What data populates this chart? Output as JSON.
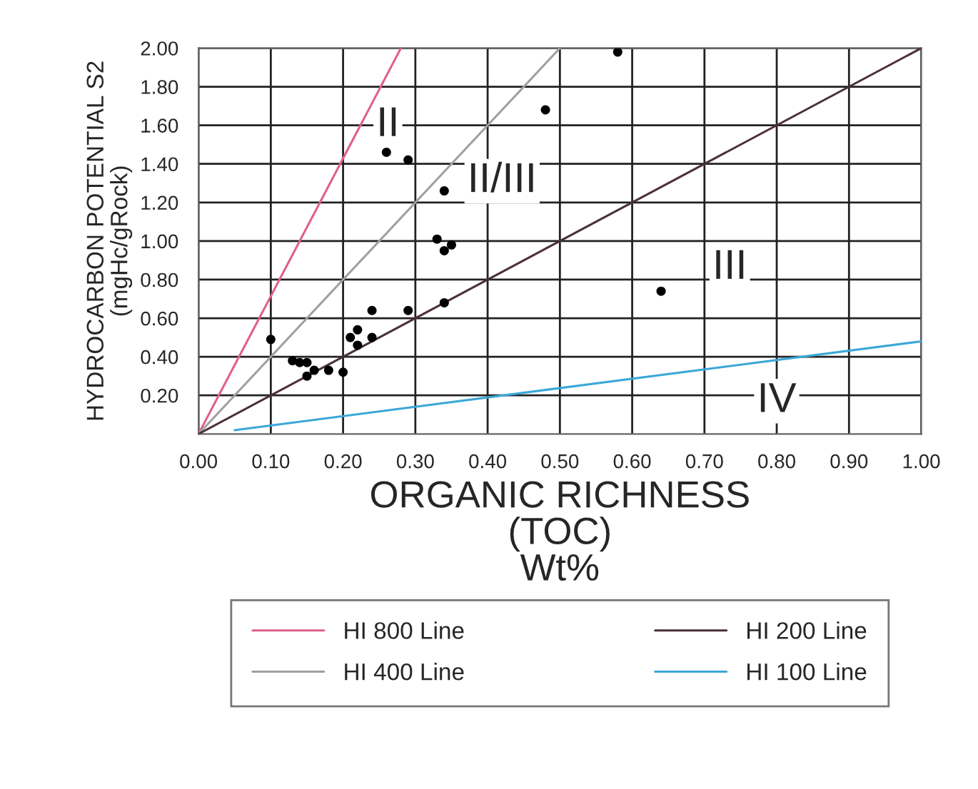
{
  "chart_data": {
    "type": "scatter",
    "xlabel": "ORGANIC RICHNESS\n(TOC)\nWt%",
    "ylabel": "HYDROCARBON POTENTIAL S2\n(mgHc/gRock)",
    "xlim": [
      0,
      1
    ],
    "ylim": [
      0,
      2
    ],
    "xticks": [
      {
        "value": 0,
        "label": "0.00"
      },
      {
        "value": 0.1,
        "label": "0.10"
      },
      {
        "value": 0.2,
        "label": "0.20"
      },
      {
        "value": 0.3,
        "label": "0.30"
      },
      {
        "value": 0.4,
        "label": "0.40"
      },
      {
        "value": 0.5,
        "label": "0.50"
      },
      {
        "value": 0.6,
        "label": "0.60"
      },
      {
        "value": 0.7,
        "label": "0.70"
      },
      {
        "value": 0.8,
        "label": "0.80"
      },
      {
        "value": 0.9,
        "label": "0.90"
      },
      {
        "value": 1,
        "label": "1.00"
      }
    ],
    "yticks": [
      {
        "value": 0.2,
        "label": "0.20"
      },
      {
        "value": 0.4,
        "label": "0.40"
      },
      {
        "value": 0.6,
        "label": "0.60"
      },
      {
        "value": 0.8,
        "label": "0.80"
      },
      {
        "value": 1.0,
        "label": "1.00"
      },
      {
        "value": 1.2,
        "label": "1.20"
      },
      {
        "value": 1.4,
        "label": "1.40"
      },
      {
        "value": 1.6,
        "label": "1.60"
      },
      {
        "value": 1.8,
        "label": "1.80"
      },
      {
        "value": 2.0,
        "label": "2.00"
      }
    ],
    "grid": true,
    "legend": "bottom",
    "series": [
      {
        "name": "HI 800 Line",
        "type": "line",
        "color": "#e0608a",
        "x": [
          0,
          0.28
        ],
        "values": [
          0,
          2.0
        ]
      },
      {
        "name": "HI 400 Line",
        "type": "line",
        "color": "#a0a0a0",
        "x": [
          0,
          0.5
        ],
        "values": [
          0,
          2.0
        ]
      },
      {
        "name": "HI 200 Line",
        "type": "line",
        "color": "#4a3038",
        "x": [
          0,
          1.0
        ],
        "values": [
          0,
          2.0
        ]
      },
      {
        "name": "HI 100 Line",
        "type": "line",
        "color": "#3aa8d8",
        "x": [
          0.05,
          1.0
        ],
        "values": [
          0.02,
          0.48
        ]
      },
      {
        "color": "#000000",
        "marker": "circle",
        "x": [
          0.1,
          0.13,
          0.14,
          0.15,
          0.15,
          0.16,
          0.18,
          0.2,
          0.21,
          0.22,
          0.22,
          0.24,
          0.24,
          0.26,
          0.29,
          0.29,
          0.33,
          0.34,
          0.35,
          0.34,
          0.34,
          0.48,
          0.58,
          0.64
        ],
        "values": [
          0.49,
          0.38,
          0.37,
          0.37,
          0.3,
          0.33,
          0.33,
          0.32,
          0.5,
          0.54,
          0.46,
          0.64,
          0.5,
          1.46,
          1.42,
          0.64,
          1.01,
          0.95,
          0.98,
          1.26,
          0.68,
          1.68,
          1.98,
          0.74
        ]
      }
    ],
    "annotations": [
      "II",
      "II/III",
      "III",
      "IV"
    ]
  }
}
